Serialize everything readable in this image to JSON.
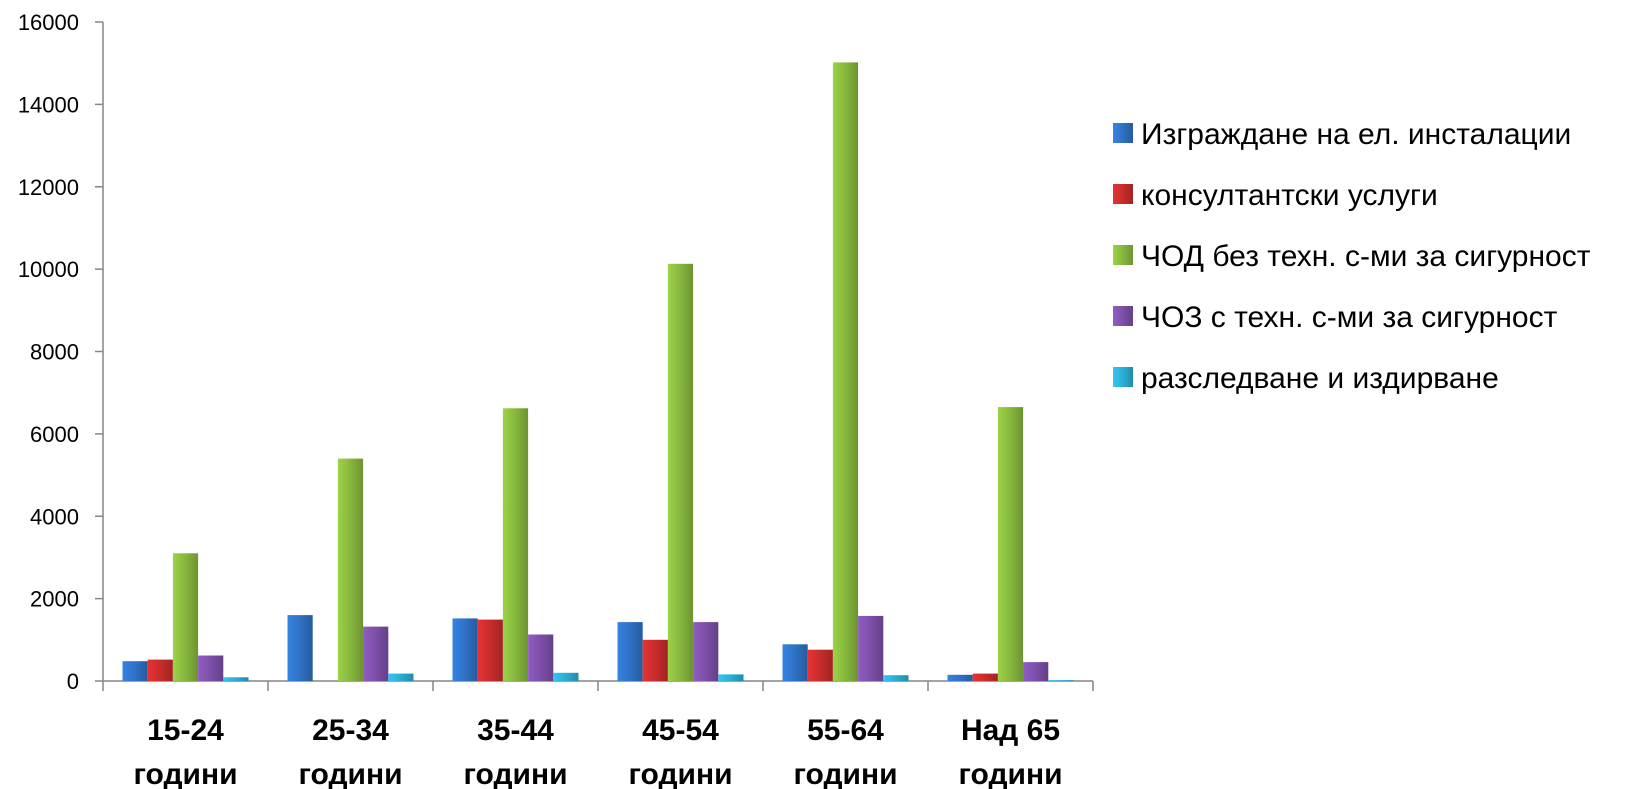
{
  "chart_data": {
    "type": "bar",
    "categories": [
      [
        "15-24",
        "години"
      ],
      [
        "25-34",
        "години"
      ],
      [
        "35-44",
        "години"
      ],
      [
        "45-54",
        "години"
      ],
      [
        "55-64",
        "години"
      ],
      [
        "Над 65",
        "години"
      ]
    ],
    "series": [
      {
        "name": "Изграждане на ел. инсталации",
        "color": "#2e6fc0",
        "values": [
          480,
          1600,
          1520,
          1430,
          890,
          150
        ]
      },
      {
        "name": "консултантски услуги",
        "color": "#c42b2b",
        "values": [
          520,
          0,
          1490,
          1000,
          760,
          180
        ]
      },
      {
        "name": "ЧОД без техн. с-ми за сигурност",
        "color": "#84b33c",
        "values": [
          3100,
          5400,
          6620,
          10130,
          15020,
          6650
        ]
      },
      {
        "name": "ЧОЗ с техн. с-ми за сигурност",
        "color": "#7a4ea5",
        "values": [
          620,
          1320,
          1130,
          1430,
          1580,
          460
        ]
      },
      {
        "name": "разследване и издирване",
        "color": "#2aa9cf",
        "values": [
          90,
          180,
          200,
          160,
          140,
          20
        ]
      }
    ],
    "yticks": [
      "0",
      "2000",
      "4000",
      "6000",
      "8000",
      "10000",
      "12000",
      "14000",
      "16000"
    ],
    "ylim": [
      0,
      16000
    ],
    "grid": false,
    "legend_position": "right",
    "title": "",
    "xlabel": "",
    "ylabel": ""
  }
}
